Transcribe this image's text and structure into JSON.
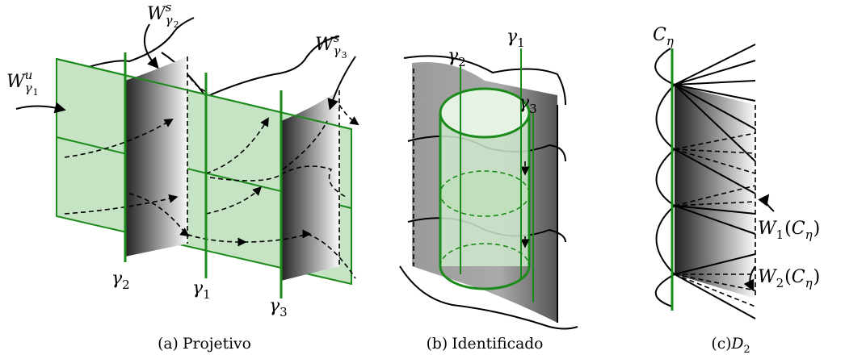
{
  "panels": [
    {
      "caption": [
        {
          "text": "(a)"
        },
        {
          "text": "Projetivo"
        }
      ],
      "labels": [
        [
          {
            "text": "W",
            "italic": true
          },
          {
            "text": "s",
            "pos": "sup",
            "italic": true
          },
          {
            "text": "γ",
            "pos": "sub",
            "italic": true
          },
          {
            "text": "2",
            "pos": "subsub"
          }
        ],
        [
          {
            "text": "W",
            "italic": true
          },
          {
            "text": "s",
            "pos": "sup",
            "italic": true
          },
          {
            "text": "γ",
            "pos": "sub",
            "italic": true
          },
          {
            "text": "3",
            "pos": "subsub"
          }
        ],
        [
          {
            "text": "W",
            "italic": true
          },
          {
            "text": "u",
            "pos": "sup",
            "italic": true
          },
          {
            "text": "γ",
            "pos": "sub",
            "italic": true
          },
          {
            "text": "1",
            "pos": "subsub"
          }
        ],
        [
          {
            "text": "γ",
            "italic": true
          },
          {
            "text": "2",
            "pos": "sub"
          }
        ],
        [
          {
            "text": "γ",
            "italic": true
          },
          {
            "text": "1",
            "pos": "sub"
          }
        ],
        [
          {
            "text": "γ",
            "italic": true
          },
          {
            "text": "3",
            "pos": "sub"
          }
        ]
      ]
    },
    {
      "caption": [
        {
          "text": "(b)"
        },
        {
          "text": "Identificado"
        }
      ],
      "labels": [
        [
          {
            "text": "γ",
            "italic": true
          },
          {
            "text": "2",
            "pos": "sub"
          }
        ],
        [
          {
            "text": "γ",
            "italic": true
          },
          {
            "text": "1",
            "pos": "sub"
          }
        ],
        [
          {
            "text": "γ",
            "italic": true
          },
          {
            "text": "3",
            "pos": "sub"
          }
        ]
      ]
    },
    {
      "caption": [
        {
          "text": "(c)"
        },
        {
          "text": "D",
          "italic": true
        },
        {
          "text": "2",
          "pos": "sub"
        }
      ],
      "labels": [
        [
          {
            "text": "C",
            "italic": true
          },
          {
            "text": "η",
            "pos": "sub",
            "italic": true
          }
        ],
        [
          {
            "text": "W",
            "italic": true
          },
          {
            "text": "1",
            "pos": "sub"
          },
          {
            "text": "("
          },
          {
            "text": "C",
            "italic": true
          },
          {
            "text": "η",
            "pos": "sub",
            "italic": true
          },
          {
            "text": ")"
          }
        ],
        [
          {
            "text": "W",
            "italic": true
          },
          {
            "text": "2",
            "pos": "sub"
          },
          {
            "text": "("
          },
          {
            "text": "C",
            "italic": true
          },
          {
            "text": "η",
            "pos": "sub",
            "italic": true
          },
          {
            "text": ")"
          }
        ]
      ]
    }
  ]
}
